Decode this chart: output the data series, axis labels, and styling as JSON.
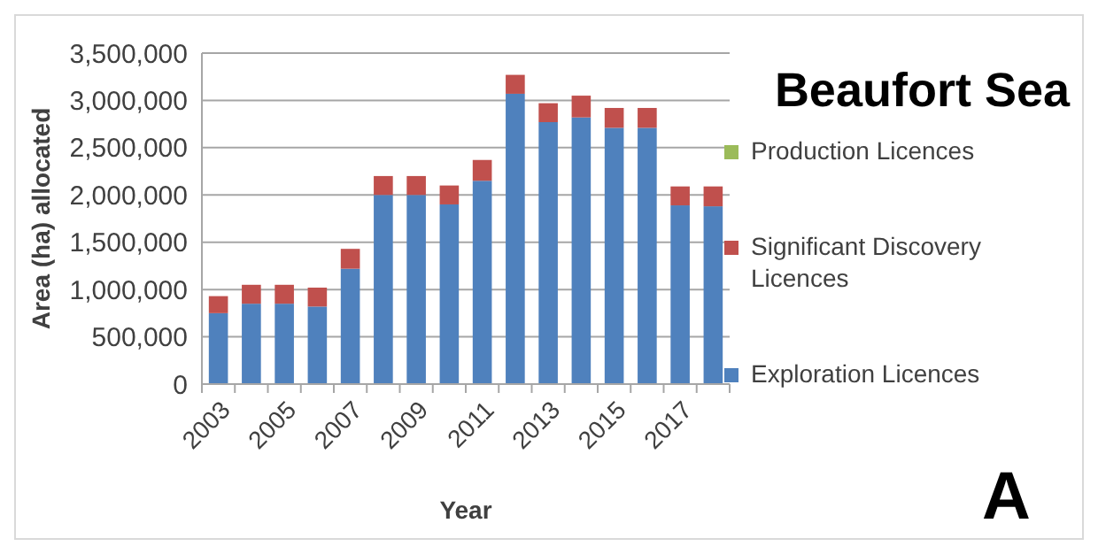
{
  "chart_data": {
    "type": "bar",
    "title": "Beaufort Sea",
    "xlabel": "Year",
    "ylabel": "Area (ha) allocated",
    "annotations": [
      "A"
    ],
    "categories": [
      "2003",
      null,
      "2005",
      null,
      "2007",
      null,
      "2009",
      null,
      "2011",
      null,
      "2013",
      null,
      "2015",
      null,
      "2017",
      null
    ],
    "stacked": true,
    "series": [
      {
        "name": "Exploration Licences",
        "color": "#4f81bd",
        "values": [
          750000,
          850000,
          850000,
          820000,
          1220000,
          2000000,
          2000000,
          1900000,
          2150000,
          3070000,
          2770000,
          2820000,
          2710000,
          2710000,
          1890000,
          1880000
        ]
      },
      {
        "name": "Significant Discovery Licences",
        "color": "#c0504d",
        "values": [
          180000,
          200000,
          200000,
          200000,
          210000,
          200000,
          200000,
          200000,
          220000,
          200000,
          200000,
          230000,
          210000,
          210000,
          200000,
          210000
        ]
      },
      {
        "name": "Production Licences",
        "color": "#9bbb59",
        "values": [
          0,
          0,
          0,
          0,
          0,
          0,
          0,
          0,
          0,
          0,
          0,
          0,
          0,
          0,
          0,
          0
        ]
      }
    ],
    "ylim": [
      0,
      3500000
    ],
    "yticks": [
      {
        "value": 0,
        "label": "0"
      },
      {
        "value": 500000,
        "label": "500,000"
      },
      {
        "value": 1000000,
        "label": "1,000,000"
      },
      {
        "value": 1500000,
        "label": "1,500,000"
      },
      {
        "value": 2000000,
        "label": "2,000,000"
      },
      {
        "value": 2500000,
        "label": "2,500,000"
      },
      {
        "value": 3000000,
        "label": "3,000,000"
      },
      {
        "value": 3500000,
        "label": "3,500,000"
      }
    ],
    "grid": "y",
    "legend": "right"
  }
}
